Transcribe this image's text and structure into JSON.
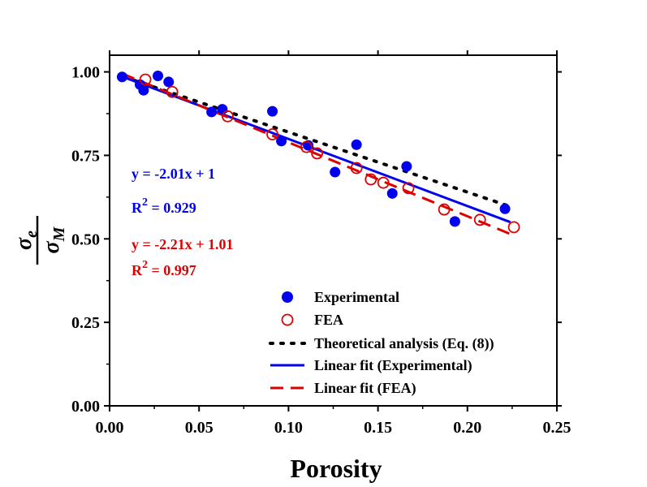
{
  "chart_data": {
    "type": "scatter",
    "xlabel": "Porosity",
    "ylabel": {
      "numerator": "σ",
      "numerator_sub": "e",
      "denominator": "σ",
      "denominator_sub": "M"
    },
    "xlim": [
      0.0,
      0.25
    ],
    "ylim": [
      0.0,
      1.05
    ],
    "xticks": [
      "0.00",
      "0.05",
      "0.10",
      "0.15",
      "0.20",
      "0.25"
    ],
    "xtick_values": [
      0.0,
      0.05,
      0.1,
      0.15,
      0.2,
      0.25
    ],
    "yticks": [
      "0.00",
      "0.25",
      "0.50",
      "0.75",
      "1.00"
    ],
    "ytick_values": [
      0.0,
      0.25,
      0.5,
      0.75,
      1.0
    ],
    "series": [
      {
        "name": "Experimental",
        "kind": "points",
        "marker": "filled-circle",
        "color": "#0000ee",
        "points": [
          [
            0.007,
            0.985
          ],
          [
            0.017,
            0.962
          ],
          [
            0.019,
            0.945
          ],
          [
            0.027,
            0.988
          ],
          [
            0.033,
            0.97
          ],
          [
            0.057,
            0.88
          ],
          [
            0.063,
            0.888
          ],
          [
            0.091,
            0.882
          ],
          [
            0.096,
            0.793
          ],
          [
            0.111,
            0.78
          ],
          [
            0.126,
            0.7
          ],
          [
            0.138,
            0.782
          ],
          [
            0.158,
            0.636
          ],
          [
            0.166,
            0.717
          ],
          [
            0.193,
            0.552
          ],
          [
            0.221,
            0.59
          ]
        ]
      },
      {
        "name": "FEA",
        "kind": "points",
        "marker": "open-circle",
        "color": "#dd0000",
        "points": [
          [
            0.02,
            0.977
          ],
          [
            0.035,
            0.94
          ],
          [
            0.066,
            0.867
          ],
          [
            0.091,
            0.813
          ],
          [
            0.11,
            0.775
          ],
          [
            0.116,
            0.756
          ],
          [
            0.138,
            0.712
          ],
          [
            0.146,
            0.678
          ],
          [
            0.153,
            0.668
          ],
          [
            0.167,
            0.652
          ],
          [
            0.187,
            0.588
          ],
          [
            0.207,
            0.557
          ],
          [
            0.226,
            0.535
          ]
        ]
      },
      {
        "name": "Theoretical analysis (Eq. (8))",
        "kind": "line",
        "style": "dotted",
        "color": "#000000",
        "points": [
          [
            0.008,
            0.985
          ],
          [
            0.225,
            0.595
          ]
        ]
      },
      {
        "name": "Linear fit (Experimental)",
        "kind": "line",
        "style": "solid",
        "color": "#0000ee",
        "points": [
          [
            0.007,
            0.986
          ],
          [
            0.224,
            0.55
          ]
        ]
      },
      {
        "name": "Linear fit (FEA)",
        "kind": "line",
        "style": "dashed",
        "color": "#dd0000",
        "points": [
          [
            0.007,
            0.995
          ],
          [
            0.226,
            0.51
          ]
        ]
      }
    ],
    "legend": {
      "placement": "bottom-right",
      "items": [
        {
          "label": "Experimental",
          "marker": "filled-circle",
          "color": "#0000ee"
        },
        {
          "label": "FEA",
          "marker": "open-circle",
          "color": "#dd0000"
        },
        {
          "label": "Theoretical analysis (Eq. (8))",
          "marker": "dotted-line",
          "color": "#000000"
        },
        {
          "label": "Linear fit (Experimental)",
          "marker": "solid-line",
          "color": "#0000ee"
        },
        {
          "label": "Linear fit (FEA)",
          "marker": "dashed-line",
          "color": "#dd0000"
        }
      ]
    },
    "annotations": [
      {
        "name": "exp-equation",
        "text": "y = -2.01x + 1",
        "color": "#0000ee"
      },
      {
        "name": "exp-r2",
        "prefix": "R",
        "sup": "2",
        "rest": " = 0.929",
        "color": "#0000ee"
      },
      {
        "name": "fea-equation",
        "text": "y = -2.21x + 1.01",
        "color": "#dd0000"
      },
      {
        "name": "fea-r2",
        "prefix": "R",
        "sup": "2",
        "rest": " = 0.997",
        "color": "#dd0000"
      }
    ]
  }
}
